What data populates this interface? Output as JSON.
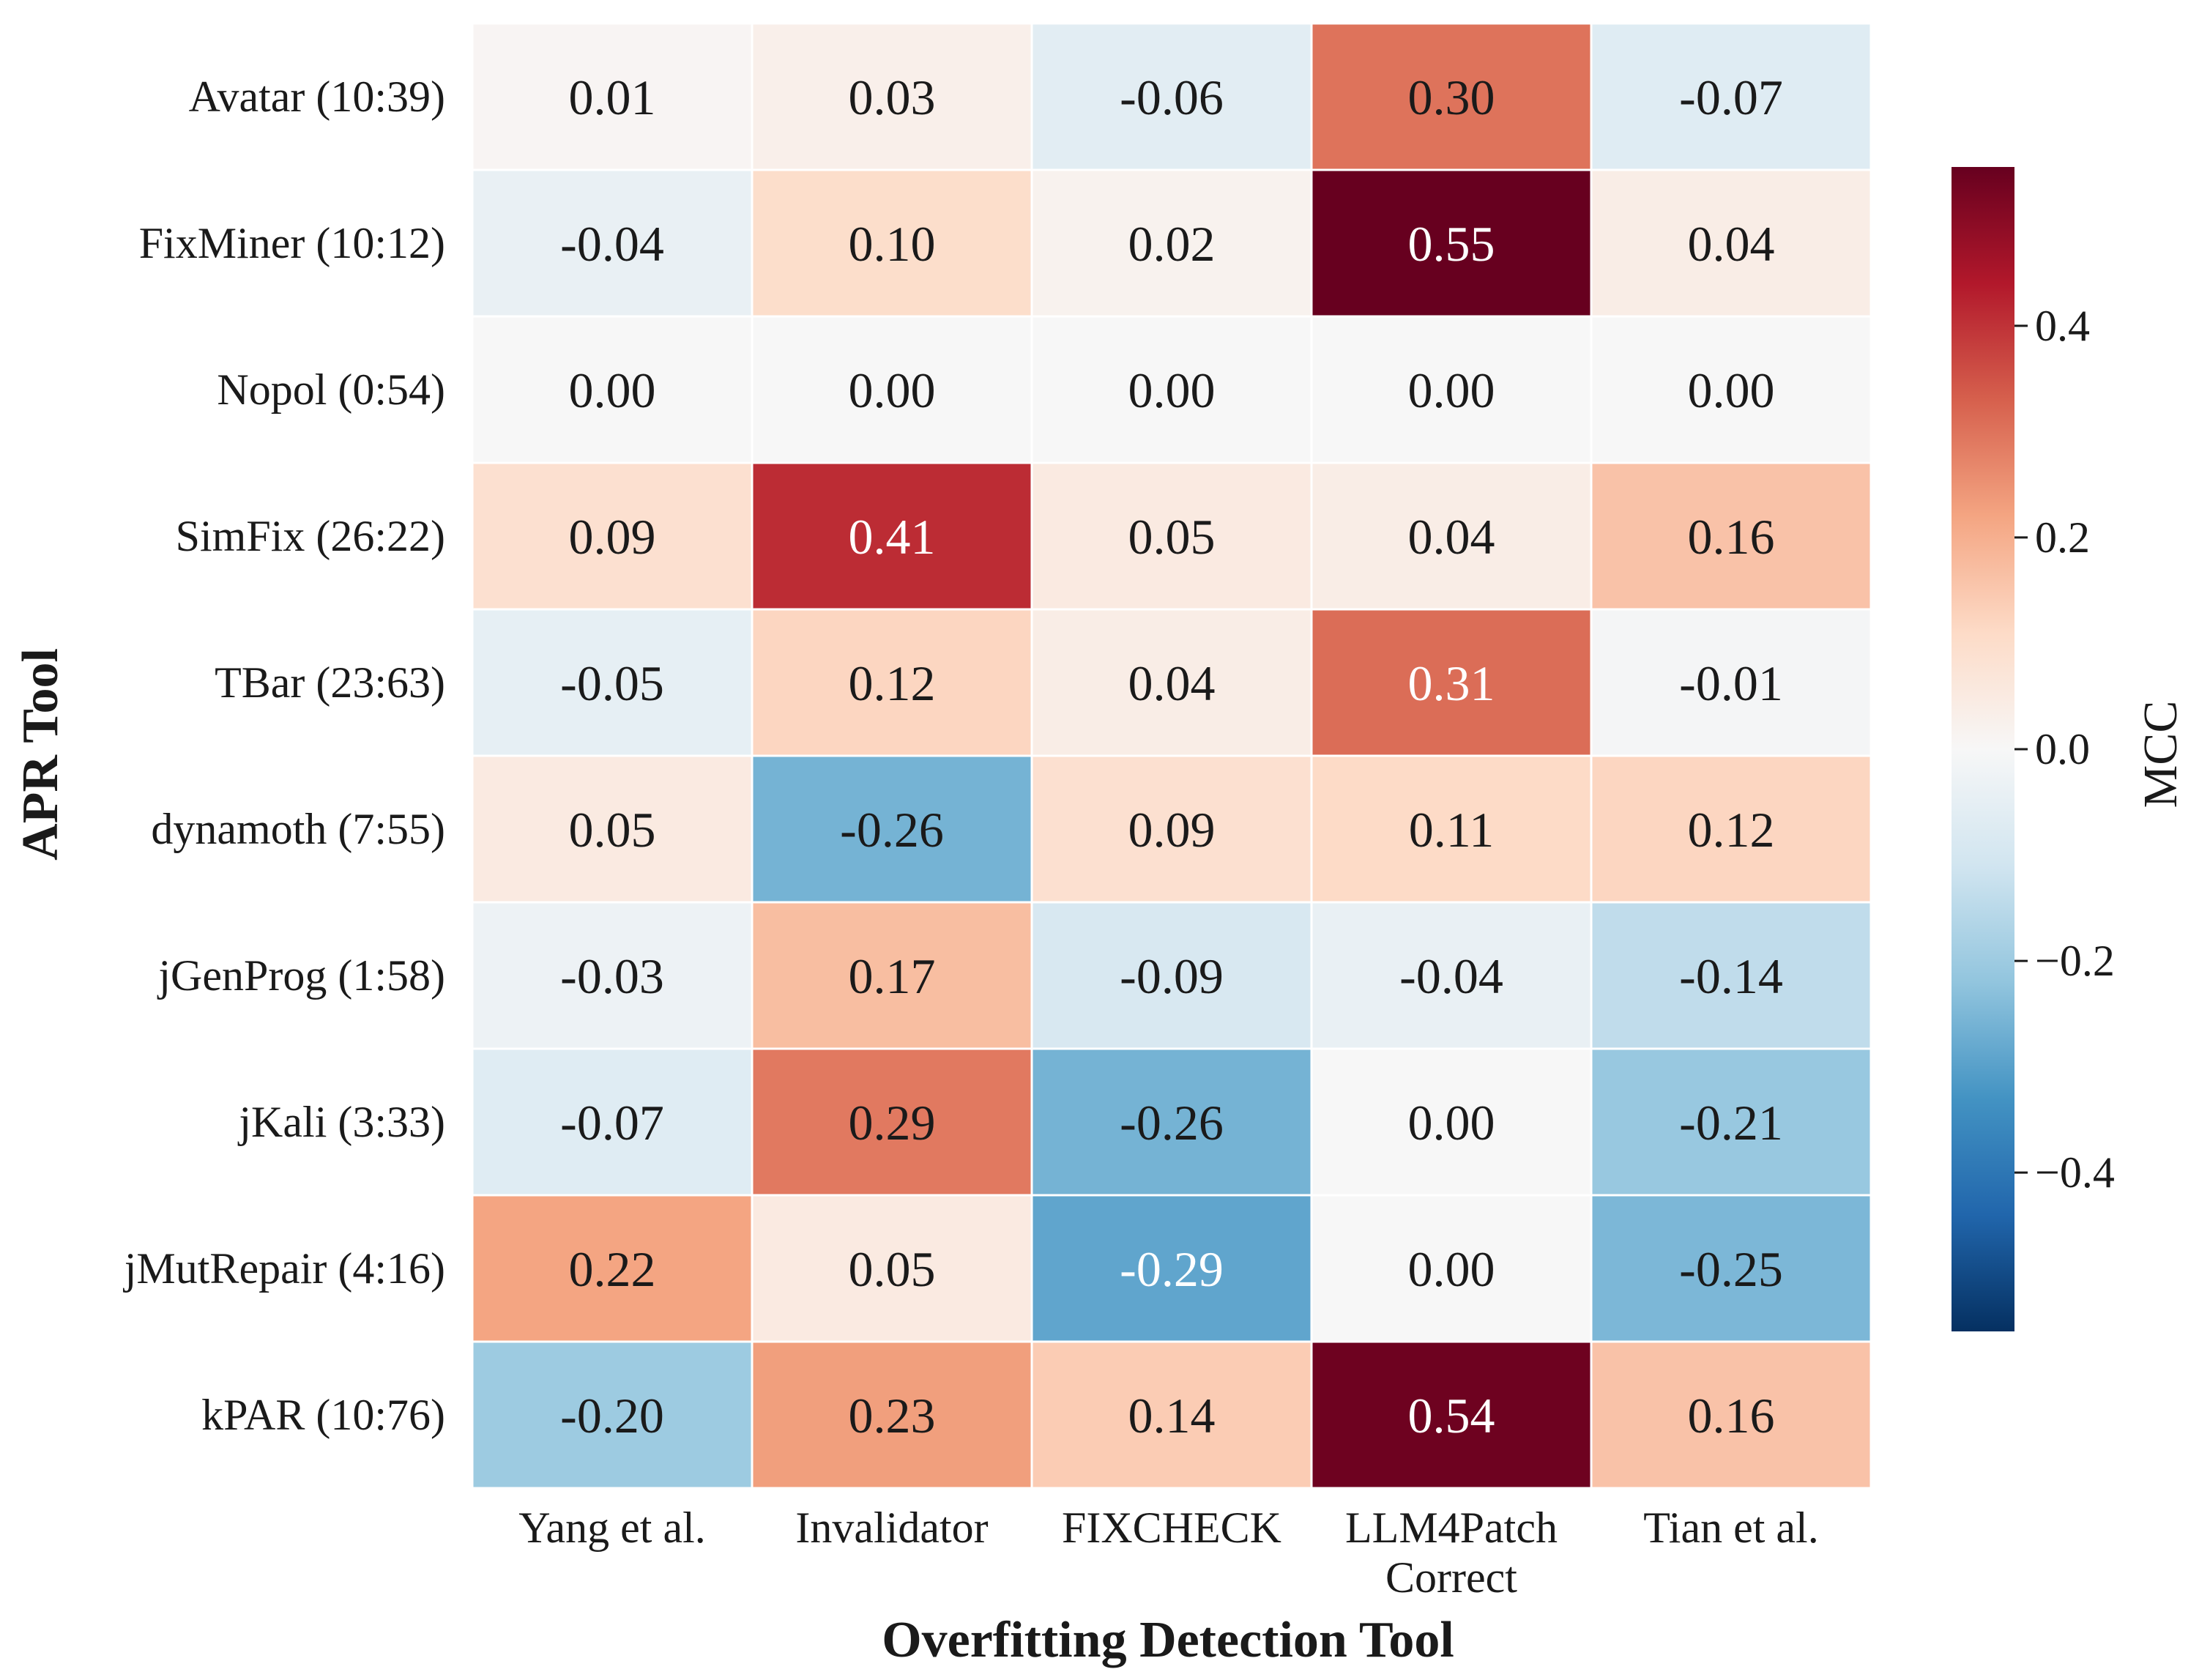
{
  "chart_data": {
    "type": "heatmap",
    "title": "",
    "xlabel": "Overfitting Detection Tool",
    "ylabel": "APR Tool",
    "x_categories": [
      "Yang et al.",
      "Invalidator",
      "FIXCHECK",
      "LLM4Patch\nCorrect",
      "Tian et al."
    ],
    "y_categories": [
      "Avatar (10:39)",
      "FixMiner (10:12)",
      "Nopol (0:54)",
      "SimFix (26:22)",
      "TBar (23:63)",
      "dynamoth (7:55)",
      "jGenProg (1:58)",
      "jKali (3:33)",
      "jMutRepair (4:16)",
      "kPAR (10:76)"
    ],
    "values": [
      [
        0.01,
        0.03,
        -0.06,
        0.3,
        -0.07
      ],
      [
        -0.04,
        0.1,
        0.02,
        0.55,
        0.04
      ],
      [
        0.0,
        0.0,
        0.0,
        0.0,
        0.0
      ],
      [
        0.09,
        0.41,
        0.05,
        0.04,
        0.16
      ],
      [
        -0.05,
        0.12,
        0.04,
        0.31,
        -0.01
      ],
      [
        0.05,
        -0.26,
        0.09,
        0.11,
        0.12
      ],
      [
        -0.03,
        0.17,
        -0.09,
        -0.04,
        -0.14
      ],
      [
        -0.07,
        0.29,
        -0.26,
        0.0,
        -0.21
      ],
      [
        0.22,
        0.05,
        -0.29,
        0.0,
        -0.25
      ],
      [
        -0.2,
        0.23,
        0.14,
        0.54,
        0.16
      ]
    ],
    "colormap": "RdBu_r",
    "vmin": -0.55,
    "vmax": 0.55,
    "colorbar": {
      "label": "MCC",
      "ticks": [
        0.4,
        0.2,
        0.0,
        -0.2,
        -0.4
      ],
      "tick_labels": [
        "0.4",
        "0.2",
        "0.0",
        "−0.2",
        "−0.4"
      ]
    }
  }
}
